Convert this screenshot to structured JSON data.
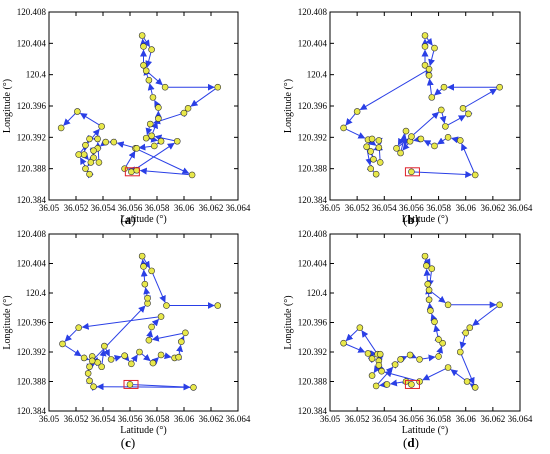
{
  "chart_data": [
    {
      "panel_label": "a",
      "type": "line",
      "xlabel": "Latitude (°)",
      "ylabel": "Longitude (°)",
      "xlim": [
        36.05,
        36.064
      ],
      "ylim": [
        120.384,
        120.408
      ],
      "x_ticks": [
        "36.05",
        "36.052",
        "36.054",
        "36.056",
        "36.058",
        "36.06",
        "36.062",
        "36.064"
      ],
      "y_ticks": [
        "120.384",
        "120.388",
        "120.392",
        "120.396",
        "120.4",
        "120.404",
        "120.408"
      ],
      "grid": false,
      "series": [
        {
          "markers": "circle",
          "arrows": true,
          "points": [
            [
              36.0561,
              120.3876
            ],
            [
              36.0595,
              120.3915
            ],
            [
              36.0576,
              120.3922
            ],
            [
              36.0581,
              120.3944
            ],
            [
              36.0581,
              120.3958
            ],
            [
              36.0577,
              120.3971
            ],
            [
              36.0574,
              120.3993
            ],
            [
              36.057,
              120.4012
            ],
            [
              36.057,
              120.4036
            ],
            [
              36.0569,
              120.405
            ],
            [
              36.0576,
              120.4032
            ],
            [
              36.0572,
              120.4005
            ],
            [
              36.0586,
              120.3984
            ],
            [
              36.0625,
              120.3984
            ],
            [
              36.0603,
              120.3957
            ],
            [
              36.06,
              120.3951
            ],
            [
              36.0575,
              120.3937
            ],
            [
              36.0572,
              120.3919
            ],
            [
              36.0583,
              120.3915
            ],
            [
              36.0578,
              120.3909
            ],
            [
              36.0564,
              120.3906
            ],
            [
              36.0606,
              120.3872
            ],
            [
              36.0565,
              120.3878
            ],
            [
              36.0556,
              120.388
            ],
            [
              36.0565,
              120.3906
            ],
            [
              36.0548,
              120.3914
            ],
            [
              36.0542,
              120.3914
            ],
            [
              36.0536,
              120.3906
            ],
            [
              36.0533,
              120.3903
            ],
            [
              36.0533,
              120.3894
            ],
            [
              36.0537,
              120.3888
            ],
            [
              36.0536,
              120.3918
            ],
            [
              36.053,
              120.3918
            ],
            [
              36.0527,
              120.391
            ],
            [
              36.0526,
              120.3898
            ],
            [
              36.0531,
              120.3888
            ],
            [
              36.0527,
              120.388
            ],
            [
              36.053,
              120.3873
            ],
            [
              36.0522,
              120.3898
            ],
            [
              36.0539,
              120.3934
            ],
            [
              36.0521,
              120.3953
            ],
            [
              36.0509,
              120.3932
            ]
          ]
        }
      ]
    },
    {
      "panel_label": "b",
      "type": "line",
      "xlabel": "Latitude (°)",
      "ylabel": "Longitude (°)",
      "xlim": [
        36.05,
        36.064
      ],
      "ylim": [
        120.384,
        120.408
      ],
      "x_ticks": [
        "36.05",
        "36.052",
        "36.054",
        "36.056",
        "36.058",
        "36.06",
        "36.062",
        "36.064"
      ],
      "y_ticks": [
        "120.384",
        "120.388",
        "120.392",
        "120.396",
        "120.4",
        "120.404",
        "120.408"
      ],
      "grid": false,
      "series": [
        {
          "markers": "circle",
          "arrows": true,
          "points": [
            [
              36.056,
              120.3876
            ],
            [
              36.0607,
              120.3872
            ],
            [
              36.0596,
              120.3916
            ],
            [
              36.0587,
              120.392
            ],
            [
              36.0577,
              120.3909
            ],
            [
              36.0567,
              120.3918
            ],
            [
              36.0559,
              120.3915
            ],
            [
              36.0552,
              120.39
            ],
            [
              36.0556,
              120.3928
            ],
            [
              36.0549,
              120.3906
            ],
            [
              36.056,
              120.3921
            ],
            [
              36.0582,
              120.3955
            ],
            [
              36.0585,
              120.3934
            ],
            [
              36.0602,
              120.395
            ],
            [
              36.0598,
              120.3957
            ],
            [
              36.0625,
              120.3984
            ],
            [
              36.0584,
              120.3984
            ],
            [
              36.0575,
              120.3971
            ],
            [
              36.0573,
              120.3999
            ],
            [
              36.057,
              120.4012
            ],
            [
              36.057,
              120.4036
            ],
            [
              36.057,
              120.405
            ],
            [
              36.0577,
              120.4034
            ],
            [
              36.0573,
              120.4007
            ],
            [
              36.052,
              120.3953
            ],
            [
              36.051,
              120.3932
            ],
            [
              36.0528,
              120.3917
            ],
            [
              36.0536,
              120.3907
            ],
            [
              36.053,
              120.3902
            ],
            [
              36.0532,
              120.3892
            ],
            [
              36.0537,
              120.3888
            ],
            [
              36.0536,
              120.3916
            ],
            [
              36.0531,
              120.3918
            ],
            [
              36.0527,
              120.3908
            ],
            [
              36.053,
              120.388
            ],
            [
              36.0534,
              120.3873
            ]
          ]
        }
      ]
    },
    {
      "panel_label": "c",
      "type": "line",
      "xlabel": "Latitude (°)",
      "ylabel": "Longitude (°)",
      "xlim": [
        36.05,
        36.064
      ],
      "ylim": [
        120.384,
        120.408
      ],
      "x_ticks": [
        "36.05",
        "36.052",
        "36.054",
        "36.056",
        "36.058",
        "36.06",
        "36.062",
        "36.064"
      ],
      "y_ticks": [
        "120.384",
        "120.388",
        "120.392",
        "120.396",
        "120.4",
        "120.404",
        "120.408"
      ],
      "grid": false,
      "series": [
        {
          "markers": "circle",
          "arrows": true,
          "points": [
            [
              36.056,
              120.3876
            ],
            [
              36.0607,
              120.3872
            ],
            [
              36.0533,
              120.3873
            ],
            [
              36.053,
              120.3881
            ],
            [
              36.0529,
              120.3891
            ],
            [
              36.053,
              120.39
            ],
            [
              36.0536,
              120.3906
            ],
            [
              36.0532,
              120.3914
            ],
            [
              36.0539,
              120.39
            ],
            [
              36.0541,
              120.3928
            ],
            [
              36.0546,
              120.391
            ],
            [
              36.0556,
              120.3915
            ],
            [
              36.0561,
              120.3904
            ],
            [
              36.0567,
              120.392
            ],
            [
              36.0577,
              120.3905
            ],
            [
              36.0583,
              120.3916
            ],
            [
              36.0593,
              120.3912
            ],
            [
              36.0596,
              120.3913
            ],
            [
              36.0598,
              120.3934
            ],
            [
              36.0601,
              120.3946
            ],
            [
              36.0574,
              120.3936
            ],
            [
              36.0576,
              120.3954
            ],
            [
              36.0583,
              120.3968
            ],
            [
              36.0522,
              120.3953
            ],
            [
              36.051,
              120.3931
            ],
            [
              36.0526,
              120.3912
            ],
            [
              36.0532,
              120.3908
            ],
            [
              36.0573,
              120.3986
            ],
            [
              36.0573,
              120.3993
            ],
            [
              36.0571,
              120.4012
            ],
            [
              36.057,
              120.4036
            ],
            [
              36.0569,
              120.405
            ],
            [
              36.0576,
              120.403
            ],
            [
              36.0587,
              120.3983
            ],
            [
              36.0625,
              120.3983
            ]
          ]
        }
      ]
    },
    {
      "panel_label": "d",
      "type": "line",
      "xlabel": "Latitude (°)",
      "ylabel": "Longitude (°)",
      "xlim": [
        36.05,
        36.064
      ],
      "ylim": [
        120.384,
        120.408
      ],
      "x_ticks": [
        "36.05",
        "36.052",
        "36.054",
        "36.056",
        "36.058",
        "36.06",
        "36.062",
        "36.064"
      ],
      "y_ticks": [
        "120.384",
        "120.388",
        "120.392",
        "120.396",
        "120.4",
        "120.404",
        "120.408"
      ],
      "grid": false,
      "series": [
        {
          "markers": "circle",
          "arrows": true,
          "points": [
            [
              36.056,
              120.3876
            ],
            [
              36.0556,
              120.388
            ],
            [
              36.0542,
              120.3876
            ],
            [
              36.0534,
              120.3874
            ],
            [
              36.0548,
              120.3903
            ],
            [
              36.0552,
              120.391
            ],
            [
              36.0559,
              120.3916
            ],
            [
              36.0566,
              120.391
            ],
            [
              36.058,
              120.3914
            ],
            [
              36.0583,
              120.3932
            ],
            [
              36.058,
              120.3937
            ],
            [
              36.0577,
              120.3961
            ],
            [
              36.0574,
              120.3976
            ],
            [
              36.0573,
              120.3991
            ],
            [
              36.0572,
              120.4012
            ],
            [
              36.0571,
              120.4037
            ],
            [
              36.057,
              120.405
            ],
            [
              36.0575,
              120.4033
            ],
            [
              36.0573,
              120.4004
            ],
            [
              36.0587,
              120.3984
            ],
            [
              36.0625,
              120.3984
            ],
            [
              36.0603,
              120.3953
            ],
            [
              36.06,
              120.3946
            ],
            [
              36.0596,
              120.392
            ],
            [
              36.0607,
              120.3872
            ],
            [
              36.0601,
              120.388
            ],
            [
              36.0587,
              120.3899
            ],
            [
              36.0566,
              120.388
            ],
            [
              36.0538,
              120.3894
            ],
            [
              36.0536,
              120.3908
            ],
            [
              36.0531,
              120.3911
            ],
            [
              36.0535,
              120.3917
            ],
            [
              36.0522,
              120.3953
            ],
            [
              36.051,
              120.3932
            ],
            [
              36.0528,
              120.3918
            ],
            [
              36.0537,
              120.3917
            ],
            [
              36.0536,
              120.3902
            ],
            [
              36.0531,
              120.3888
            ]
          ]
        }
      ]
    }
  ]
}
